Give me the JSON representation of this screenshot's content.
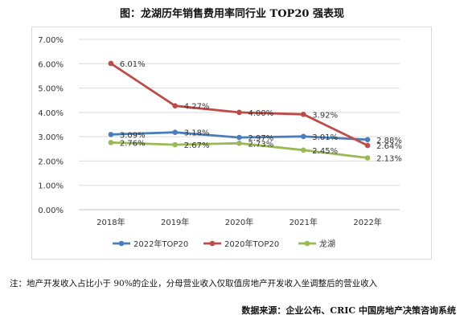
{
  "page": {
    "title": "图：龙湖历年销售费用率同行业 TOP20 强表现",
    "note": "注：地产开发收入占比小于 90%的企业，分母营业收入仅取值房地产开发收入坐调整后的营业收入",
    "source": "数据来源：企业公布、CRIC 中国房地产决策咨询系统"
  },
  "chart_data": {
    "type": "line",
    "title": "图：龙湖历年销售费用率同行业 TOP20 强表现",
    "categories": [
      "2018年",
      "2019年",
      "2020年",
      "2021年",
      "2022年"
    ],
    "y_ticks": [
      "0.00%",
      "1.00%",
      "2.00%",
      "3.00%",
      "4.00%",
      "5.00%",
      "6.00%",
      "7.00%"
    ],
    "ylim": [
      0,
      7
    ],
    "grid": "horizontal",
    "legend_position": "bottom",
    "series": [
      {
        "name": "2022年TOP20",
        "color": "#4a7ebb",
        "values": [
          3.09,
          3.18,
          2.97,
          3.01,
          2.88
        ],
        "labels": [
          "3.09%",
          "3.18%",
          "2.97%",
          "3.01%",
          "2.88%"
        ]
      },
      {
        "name": "2020年TOP20",
        "color": "#be4b48",
        "values": [
          6.01,
          4.27,
          4.0,
          3.92,
          2.64
        ],
        "labels": [
          "6.01%",
          "4.27%",
          "4.00%",
          "3.92%",
          "2.64%"
        ]
      },
      {
        "name": "龙湖",
        "color": "#98b954",
        "values": [
          2.76,
          2.67,
          2.73,
          2.45,
          2.13
        ],
        "labels": [
          "2.76%",
          "2.67%",
          "2.73%",
          "2.45%",
          "2.13%"
        ]
      }
    ]
  }
}
